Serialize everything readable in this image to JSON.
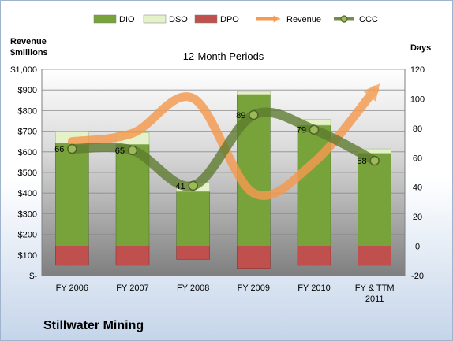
{
  "chart_data": {
    "type": "bar",
    "title": "12-Month Periods",
    "ylabel_left": "Revenue\n$millions",
    "ylabel_right": "Days",
    "company": "Stillwater Mining",
    "categories": [
      "FY 2006",
      "FY 2007",
      "FY 2008",
      "FY 2009",
      "FY 2010",
      "FY & TTM\n2011"
    ],
    "left_axis": {
      "ylim": [
        0,
        1000
      ],
      "ticks": [
        "$-",
        "$100",
        "$200",
        "$300",
        "$400",
        "$500",
        "$600",
        "$700",
        "$800",
        "$900",
        "$1,000"
      ]
    },
    "right_axis": {
      "ylim": [
        -20,
        120
      ],
      "ticks": [
        "-20",
        "0",
        "20",
        "40",
        "60",
        "80",
        "100",
        "120"
      ]
    },
    "series": [
      {
        "name": "DIO",
        "kind": "stacked-bar",
        "axis": "right",
        "color": "#77a33a",
        "values": [
          70,
          69,
          37,
          103,
          82,
          63
        ]
      },
      {
        "name": "DSO",
        "kind": "stacked-bar",
        "axis": "right",
        "color": "#e4f1c9",
        "values": [
          8,
          8,
          6,
          2,
          4,
          3
        ]
      },
      {
        "name": "DPO",
        "kind": "negative-bar",
        "axis": "right",
        "color": "#c0504d",
        "values": [
          -13,
          -13,
          -9,
          -15,
          -13,
          -13
        ]
      },
      {
        "name": "Revenue",
        "kind": "smooth-line",
        "axis": "left",
        "color": "#f59a4f",
        "values": [
          650,
          690,
          860,
          400,
          550,
          900
        ]
      },
      {
        "name": "CCC",
        "kind": "smooth-line",
        "axis": "right",
        "color": "#5c7a2e",
        "values": [
          66,
          65,
          41,
          89,
          79,
          58
        ],
        "data_labels": [
          "66",
          "65",
          "41",
          "89",
          "79",
          "58"
        ]
      }
    ],
    "legend": {
      "placement": "top",
      "entries": [
        "DIO",
        "DSO",
        "DPO",
        "Revenue",
        "CCC"
      ]
    },
    "grid": true
  }
}
